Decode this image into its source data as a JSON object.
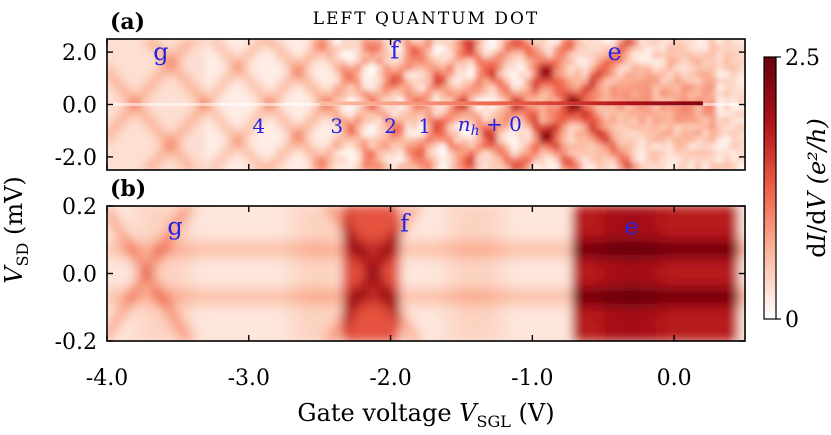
{
  "chart_data": {
    "type": "heatmap",
    "title": "LEFT QUANTUM DOT",
    "xlabel": "Gate voltage V_SGL (V)",
    "ylabel": "V_SD (mV)",
    "xlim": [
      -4.0,
      0.5
    ],
    "x_ticks": [
      {
        "value": -4.0,
        "label": "-4.0"
      },
      {
        "value": -3.0,
        "label": "-3.0"
      },
      {
        "value": -2.0,
        "label": "-2.0"
      },
      {
        "value": -1.0,
        "label": "-1.0"
      },
      {
        "value": 0.0,
        "label": "0.0"
      }
    ],
    "colorbar": {
      "label": "dI/dV (e²/h)",
      "range": [
        0,
        2.5
      ],
      "ticks": [
        {
          "value": 2.5,
          "label": "2.5"
        },
        {
          "value": 0,
          "label": "0"
        }
      ],
      "colors": [
        "#ffffff",
        "#fbb89d",
        "#ef5f46",
        "#b01218",
        "#67000d"
      ]
    },
    "panels": [
      {
        "id": "a",
        "panel_label": "(a)",
        "ylim": [
          -2.5,
          2.5
        ],
        "y_ticks": [
          {
            "value": 2.0,
            "label": "2.0"
          },
          {
            "value": 0.0,
            "label": "0.0"
          },
          {
            "value": -2.0,
            "label": "-2.0"
          }
        ],
        "region_labels": [
          {
            "text": "g",
            "x": -3.62,
            "y": 1.7
          },
          {
            "text": "f",
            "x": -1.97,
            "y": 1.75
          },
          {
            "text": "e",
            "x": -0.42,
            "y": 1.7
          }
        ],
        "occupation_labels": [
          {
            "text": "4",
            "x": -2.93,
            "y": -0.78
          },
          {
            "text": "3",
            "x": -2.38,
            "y": -0.78
          },
          {
            "text": "2",
            "x": -2.0,
            "y": -0.78
          },
          {
            "text": "1",
            "x": -1.76,
            "y": -0.78
          },
          {
            "text": "n_h + 0",
            "x": -1.3,
            "y": -0.7
          }
        ],
        "features": {
          "zero_bias_line": {
            "y": 0.0,
            "x_range": [
              -2.5,
              0.2
            ],
            "peak": 2.3
          },
          "diamond_vertices": [
            -3.8,
            -3.3,
            -2.85,
            -2.45,
            -2.12,
            -1.8,
            -1.5,
            -1.1,
            -0.7
          ]
        }
      },
      {
        "id": "b",
        "panel_label": "(b)",
        "ylim": [
          -0.2,
          0.2
        ],
        "y_ticks": [
          {
            "value": 0.2,
            "label": "0.2"
          },
          {
            "value": 0.0,
            "label": "0.0"
          },
          {
            "value": -0.2,
            "label": "-0.2"
          }
        ],
        "region_labels": [
          {
            "text": "g",
            "x": -3.52,
            "y": 0.115
          },
          {
            "text": "f",
            "x": -1.9,
            "y": 0.125
          },
          {
            "text": "e",
            "x": -0.3,
            "y": 0.115
          }
        ],
        "features": {
          "bands": [
            {
              "x_range": [
                -2.35,
                -1.95
              ],
              "level": 1.5
            },
            {
              "x_range": [
                -0.7,
                0.45
              ],
              "level": 2.1
            }
          ],
          "crossings": [
            -3.72,
            -2.12
          ],
          "peak_bias": [
            0.07,
            -0.07
          ]
        }
      }
    ]
  }
}
